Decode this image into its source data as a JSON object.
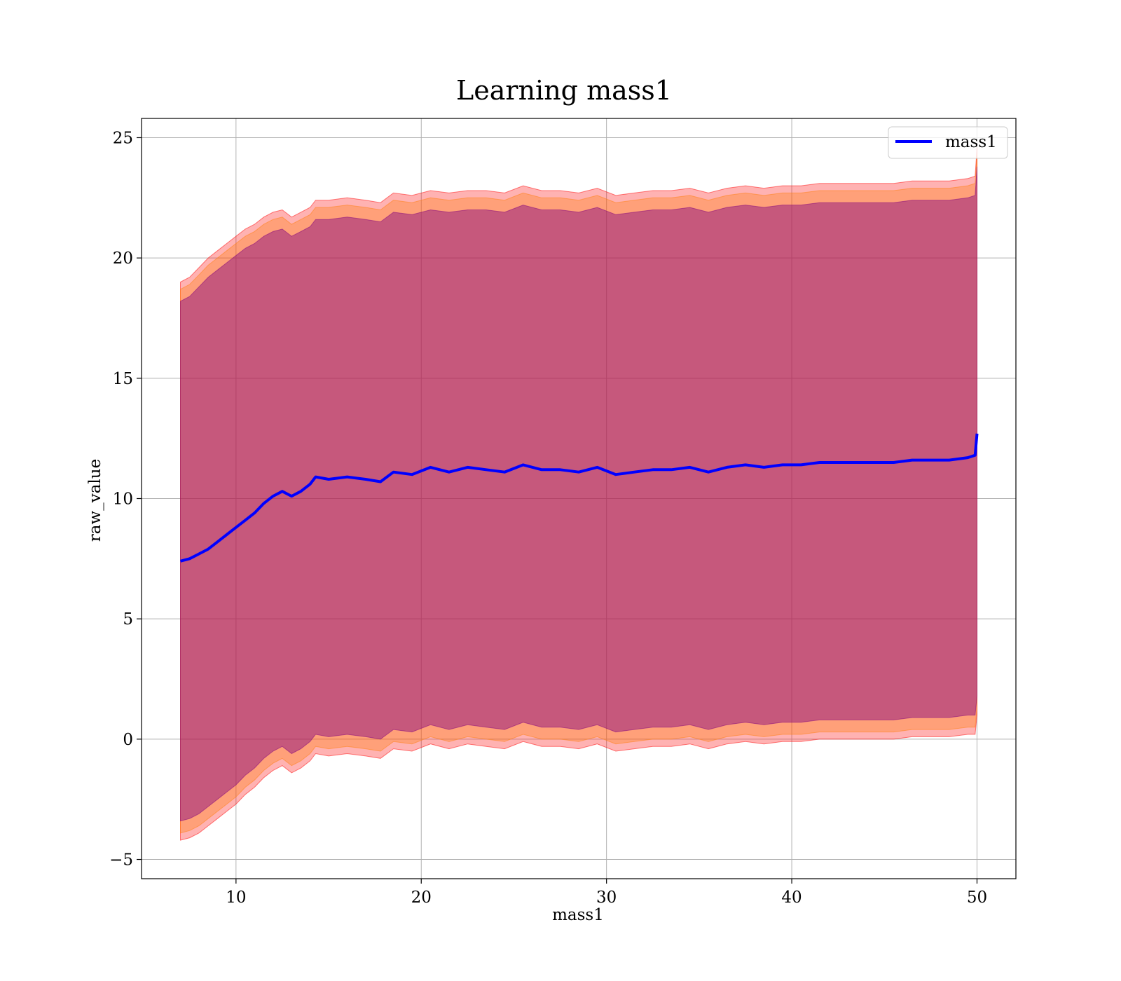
{
  "chart_data": {
    "type": "line",
    "title": "Learning mass1",
    "xlabel": "mass1",
    "ylabel": "raw_value",
    "xlim": [
      4.9,
      52.1
    ],
    "ylim": [
      -5.8,
      25.8
    ],
    "xticks": [
      10,
      20,
      30,
      40,
      50
    ],
    "yticks": [
      -5,
      0,
      5,
      10,
      15,
      20,
      25
    ],
    "xtick_labels": [
      "10",
      "20",
      "30",
      "40",
      "50"
    ],
    "ytick_labels": [
      "−5",
      "0",
      "5",
      "10",
      "15",
      "20",
      "25"
    ],
    "grid": true,
    "legend": {
      "position": "top-right",
      "entries": [
        "mass1"
      ]
    },
    "series": [
      {
        "name": "mass1",
        "color": "#0000ff",
        "x": [
          7.0,
          7.5,
          8.0,
          8.5,
          9.0,
          9.5,
          10.0,
          10.5,
          11.0,
          11.5,
          12.0,
          12.5,
          13.0,
          13.5,
          14.0,
          14.3,
          15.0,
          16.0,
          17.0,
          17.8,
          18.5,
          19.5,
          20.5,
          21.5,
          22.5,
          23.5,
          24.5,
          25.5,
          26.5,
          27.5,
          28.5,
          29.5,
          30.5,
          31.5,
          32.5,
          33.5,
          34.5,
          35.5,
          36.5,
          37.5,
          38.5,
          39.5,
          40.5,
          41.5,
          42.5,
          43.5,
          44.5,
          45.5,
          46.5,
          47.5,
          48.5,
          49.5,
          49.9,
          50.0
        ],
        "y": [
          7.4,
          7.5,
          7.7,
          7.9,
          8.2,
          8.5,
          8.8,
          9.1,
          9.4,
          9.8,
          10.1,
          10.3,
          10.1,
          10.3,
          10.6,
          10.9,
          10.8,
          10.9,
          10.8,
          10.7,
          11.1,
          11.0,
          11.3,
          11.1,
          11.3,
          11.2,
          11.1,
          11.4,
          11.2,
          11.2,
          11.1,
          11.3,
          11.0,
          11.1,
          11.2,
          11.2,
          11.3,
          11.1,
          11.3,
          11.4,
          11.3,
          11.4,
          11.4,
          11.5,
          11.5,
          11.5,
          11.5,
          11.5,
          11.6,
          11.6,
          11.6,
          11.7,
          11.8,
          12.7
        ]
      }
    ],
    "bands": [
      {
        "color": "#ff0000",
        "opacity": 0.3,
        "x": [
          7.0,
          7.5,
          8.0,
          8.5,
          9.0,
          9.5,
          10.0,
          10.5,
          11.0,
          11.5,
          12.0,
          12.5,
          13.0,
          13.5,
          14.0,
          14.3,
          15.0,
          16.0,
          17.0,
          17.8,
          18.5,
          19.5,
          20.5,
          21.5,
          22.5,
          23.5,
          24.5,
          25.5,
          26.5,
          27.5,
          28.5,
          29.5,
          30.5,
          31.5,
          32.5,
          33.5,
          34.5,
          35.5,
          36.5,
          37.5,
          38.5,
          39.5,
          40.5,
          41.5,
          42.5,
          43.5,
          44.5,
          45.5,
          46.5,
          47.5,
          48.5,
          49.5,
          49.9,
          50.0
        ],
        "upper": [
          19.0,
          19.2,
          19.6,
          20.0,
          20.3,
          20.6,
          20.9,
          21.2,
          21.4,
          21.7,
          21.9,
          22.0,
          21.7,
          21.9,
          22.1,
          22.4,
          22.4,
          22.5,
          22.4,
          22.3,
          22.7,
          22.6,
          22.8,
          22.7,
          22.8,
          22.8,
          22.7,
          23.0,
          22.8,
          22.8,
          22.7,
          22.9,
          22.6,
          22.7,
          22.8,
          22.8,
          22.9,
          22.7,
          22.9,
          23.0,
          22.9,
          23.0,
          23.0,
          23.1,
          23.1,
          23.1,
          23.1,
          23.1,
          23.2,
          23.2,
          23.2,
          23.3,
          23.4,
          24.6
        ],
        "lower": [
          -4.2,
          -4.1,
          -3.9,
          -3.6,
          -3.3,
          -3.0,
          -2.7,
          -2.3,
          -2.0,
          -1.6,
          -1.3,
          -1.1,
          -1.4,
          -1.2,
          -0.9,
          -0.6,
          -0.7,
          -0.6,
          -0.7,
          -0.8,
          -0.4,
          -0.5,
          -0.2,
          -0.4,
          -0.2,
          -0.3,
          -0.4,
          -0.1,
          -0.3,
          -0.3,
          -0.4,
          -0.2,
          -0.5,
          -0.4,
          -0.3,
          -0.3,
          -0.2,
          -0.4,
          -0.2,
          -0.1,
          -0.2,
          -0.1,
          -0.1,
          0.0,
          0.0,
          0.0,
          0.0,
          0.0,
          0.1,
          0.1,
          0.1,
          0.2,
          0.2,
          1.0
        ]
      },
      {
        "color": "#ff7f0e",
        "opacity": 0.35,
        "x": [
          7.0,
          7.5,
          8.0,
          8.5,
          9.0,
          9.5,
          10.0,
          10.5,
          11.0,
          11.5,
          12.0,
          12.5,
          13.0,
          13.5,
          14.0,
          14.3,
          15.0,
          16.0,
          17.0,
          17.8,
          18.5,
          19.5,
          20.5,
          21.5,
          22.5,
          23.5,
          24.5,
          25.5,
          26.5,
          27.5,
          28.5,
          29.5,
          30.5,
          31.5,
          32.5,
          33.5,
          34.5,
          35.5,
          36.5,
          37.5,
          38.5,
          39.5,
          40.5,
          41.5,
          42.5,
          43.5,
          44.5,
          45.5,
          46.5,
          47.5,
          48.5,
          49.5,
          49.9,
          50.0
        ],
        "upper": [
          18.7,
          18.9,
          19.3,
          19.7,
          20.0,
          20.3,
          20.6,
          20.9,
          21.1,
          21.4,
          21.6,
          21.7,
          21.4,
          21.6,
          21.8,
          22.1,
          22.1,
          22.2,
          22.1,
          22.0,
          22.4,
          22.3,
          22.5,
          22.4,
          22.5,
          22.5,
          22.4,
          22.7,
          22.5,
          22.5,
          22.4,
          22.6,
          22.3,
          22.4,
          22.5,
          22.5,
          22.6,
          22.4,
          22.6,
          22.7,
          22.6,
          22.7,
          22.7,
          22.8,
          22.8,
          22.8,
          22.8,
          22.8,
          22.9,
          22.9,
          22.9,
          23.0,
          23.1,
          24.3
        ],
        "lower": [
          -3.9,
          -3.8,
          -3.6,
          -3.3,
          -3.0,
          -2.7,
          -2.4,
          -2.0,
          -1.7,
          -1.3,
          -1.0,
          -0.8,
          -1.1,
          -0.9,
          -0.6,
          -0.3,
          -0.4,
          -0.3,
          -0.4,
          -0.5,
          -0.1,
          -0.2,
          0.1,
          -0.1,
          0.1,
          0.0,
          -0.1,
          0.2,
          0.0,
          0.0,
          -0.1,
          0.1,
          -0.2,
          -0.1,
          0.0,
          0.0,
          0.1,
          -0.1,
          0.1,
          0.2,
          0.1,
          0.2,
          0.2,
          0.3,
          0.3,
          0.3,
          0.3,
          0.3,
          0.4,
          0.4,
          0.4,
          0.5,
          0.5,
          1.3
        ]
      },
      {
        "color": "#800080",
        "opacity": 0.45,
        "x": [
          7.0,
          7.5,
          8.0,
          8.5,
          9.0,
          9.5,
          10.0,
          10.5,
          11.0,
          11.5,
          12.0,
          12.5,
          13.0,
          13.5,
          14.0,
          14.3,
          15.0,
          16.0,
          17.0,
          17.8,
          18.5,
          19.5,
          20.5,
          21.5,
          22.5,
          23.5,
          24.5,
          25.5,
          26.5,
          27.5,
          28.5,
          29.5,
          30.5,
          31.5,
          32.5,
          33.5,
          34.5,
          35.5,
          36.5,
          37.5,
          38.5,
          39.5,
          40.5,
          41.5,
          42.5,
          43.5,
          44.5,
          45.5,
          46.5,
          47.5,
          48.5,
          49.5,
          49.9,
          50.0
        ],
        "upper": [
          18.2,
          18.4,
          18.8,
          19.2,
          19.5,
          19.8,
          20.1,
          20.4,
          20.6,
          20.9,
          21.1,
          21.2,
          20.9,
          21.1,
          21.3,
          21.6,
          21.6,
          21.7,
          21.6,
          21.5,
          21.9,
          21.8,
          22.0,
          21.9,
          22.0,
          22.0,
          21.9,
          22.2,
          22.0,
          22.0,
          21.9,
          22.1,
          21.8,
          21.9,
          22.0,
          22.0,
          22.1,
          21.9,
          22.1,
          22.2,
          22.1,
          22.2,
          22.2,
          22.3,
          22.3,
          22.3,
          22.3,
          22.3,
          22.4,
          22.4,
          22.4,
          22.5,
          22.6,
          23.8
        ],
        "lower": [
          -3.4,
          -3.3,
          -3.1,
          -2.8,
          -2.5,
          -2.2,
          -1.9,
          -1.5,
          -1.2,
          -0.8,
          -0.5,
          -0.3,
          -0.6,
          -0.4,
          -0.1,
          0.2,
          0.1,
          0.2,
          0.1,
          0.0,
          0.4,
          0.3,
          0.6,
          0.4,
          0.6,
          0.5,
          0.4,
          0.7,
          0.5,
          0.5,
          0.4,
          0.6,
          0.3,
          0.4,
          0.5,
          0.5,
          0.6,
          0.4,
          0.6,
          0.7,
          0.6,
          0.7,
          0.7,
          0.8,
          0.8,
          0.8,
          0.8,
          0.8,
          0.9,
          0.9,
          0.9,
          1.0,
          1.0,
          1.8
        ]
      }
    ]
  }
}
